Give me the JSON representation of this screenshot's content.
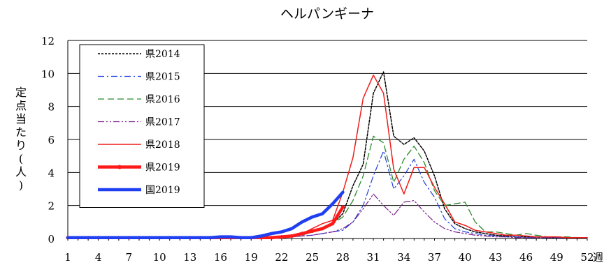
{
  "chart_data": {
    "type": "line",
    "title": "ヘルパンギーナ",
    "ylabel": "定点当たり(人)",
    "xlabel": "週",
    "xlim": [
      1,
      52
    ],
    "ylim": [
      0,
      12
    ],
    "x_ticks": [
      1,
      4,
      7,
      10,
      13,
      16,
      19,
      22,
      25,
      28,
      31,
      34,
      37,
      40,
      43,
      46,
      49,
      52
    ],
    "y_ticks": [
      0,
      2,
      4,
      6,
      8,
      10,
      12
    ],
    "grid": "horizontal",
    "legend_position": "top-left",
    "series": [
      {
        "name": "県2014",
        "color": "#000000",
        "dash": "dotted",
        "width": 1.5,
        "marker": false,
        "x": [
          1,
          2,
          3,
          4,
          5,
          6,
          7,
          8,
          9,
          10,
          11,
          12,
          13,
          14,
          15,
          16,
          17,
          18,
          19,
          20,
          21,
          22,
          23,
          24,
          25,
          26,
          27,
          28,
          29,
          30,
          31,
          32,
          33,
          34,
          35,
          36,
          37,
          38,
          39,
          40,
          41,
          42,
          43,
          44,
          45,
          46,
          47,
          48,
          49,
          50,
          51,
          52
        ],
        "values": [
          0.05,
          0.05,
          0.05,
          0.05,
          0.05,
          0.05,
          0.05,
          0.05,
          0.05,
          0.05,
          0.05,
          0.05,
          0.05,
          0.05,
          0.05,
          0.05,
          0.05,
          0.05,
          0.05,
          0.05,
          0.1,
          0.1,
          0.2,
          0.3,
          0.4,
          0.6,
          0.9,
          1.5,
          3.2,
          4.5,
          8.8,
          10.1,
          6.2,
          5.7,
          6.1,
          5.3,
          3.8,
          1.8,
          0.9,
          0.6,
          0.4,
          0.3,
          0.2,
          0.15,
          0.1,
          0.1,
          0.1,
          0.05,
          0.05,
          0.05,
          0.05,
          0.05
        ]
      },
      {
        "name": "県2015",
        "color": "#1f3fdc",
        "dash": "dashdot",
        "width": 1.2,
        "marker": false,
        "x": [
          1,
          2,
          3,
          4,
          5,
          6,
          7,
          8,
          9,
          10,
          11,
          12,
          13,
          14,
          15,
          16,
          17,
          18,
          19,
          20,
          21,
          22,
          23,
          24,
          25,
          26,
          27,
          28,
          29,
          30,
          31,
          32,
          33,
          34,
          35,
          36,
          37,
          38,
          39,
          40,
          41,
          42,
          43,
          44,
          45,
          46,
          47,
          48,
          49,
          50,
          51,
          52
        ],
        "values": [
          0.05,
          0.05,
          0.05,
          0.05,
          0.05,
          0.05,
          0.05,
          0.05,
          0.05,
          0.05,
          0.05,
          0.05,
          0.05,
          0.05,
          0.05,
          0.05,
          0.05,
          0.05,
          0.05,
          0.05,
          0.05,
          0.1,
          0.1,
          0.15,
          0.2,
          0.3,
          0.4,
          0.5,
          1.0,
          2.0,
          3.8,
          5.3,
          3.0,
          3.8,
          4.8,
          3.4,
          2.5,
          1.2,
          0.6,
          0.4,
          0.3,
          0.2,
          0.15,
          0.1,
          0.1,
          0.05,
          0.05,
          0.05,
          0.05,
          0.05,
          0.05,
          0.05
        ]
      },
      {
        "name": "県2016",
        "color": "#2b8a2b",
        "dash": "dashed",
        "width": 1.3,
        "marker": false,
        "x": [
          1,
          2,
          3,
          4,
          5,
          6,
          7,
          8,
          9,
          10,
          11,
          12,
          13,
          14,
          15,
          16,
          17,
          18,
          19,
          20,
          21,
          22,
          23,
          24,
          25,
          26,
          27,
          28,
          29,
          30,
          31,
          32,
          33,
          34,
          35,
          36,
          37,
          38,
          39,
          40,
          41,
          42,
          43,
          44,
          45,
          46,
          47,
          48,
          49,
          50,
          51,
          52
        ],
        "values": [
          0.05,
          0.05,
          0.05,
          0.05,
          0.05,
          0.05,
          0.05,
          0.05,
          0.05,
          0.05,
          0.05,
          0.05,
          0.05,
          0.05,
          0.05,
          0.05,
          0.05,
          0.05,
          0.05,
          0.05,
          0.1,
          0.1,
          0.15,
          0.2,
          0.4,
          0.6,
          0.9,
          1.3,
          2.3,
          3.8,
          6.2,
          5.8,
          3.4,
          4.8,
          5.6,
          4.6,
          2.9,
          2.0,
          2.1,
          2.2,
          1.0,
          0.4,
          0.4,
          0.3,
          0.2,
          0.3,
          0.2,
          0.1,
          0.1,
          0.1,
          0.05,
          0.05
        ]
      },
      {
        "name": "県2017",
        "color": "#7a1f8c",
        "dash": "dashdotdot",
        "width": 1.2,
        "marker": false,
        "x": [
          1,
          2,
          3,
          4,
          5,
          6,
          7,
          8,
          9,
          10,
          11,
          12,
          13,
          14,
          15,
          16,
          17,
          18,
          19,
          20,
          21,
          22,
          23,
          24,
          25,
          26,
          27,
          28,
          29,
          30,
          31,
          32,
          33,
          34,
          35,
          36,
          37,
          38,
          39,
          40,
          41,
          42,
          43,
          44,
          45,
          46,
          47,
          48,
          49,
          50,
          51,
          52
        ],
        "values": [
          0.05,
          0.05,
          0.05,
          0.05,
          0.05,
          0.05,
          0.05,
          0.05,
          0.05,
          0.05,
          0.05,
          0.05,
          0.05,
          0.05,
          0.05,
          0.05,
          0.05,
          0.05,
          0.05,
          0.05,
          0.05,
          0.1,
          0.1,
          0.15,
          0.2,
          0.3,
          0.4,
          0.6,
          1.0,
          1.8,
          2.7,
          2.0,
          1.4,
          2.2,
          2.3,
          1.6,
          1.0,
          0.6,
          0.4,
          0.3,
          0.2,
          0.15,
          0.1,
          0.1,
          0.05,
          0.05,
          0.05,
          0.05,
          0.05,
          0.05,
          0.05,
          0.05
        ]
      },
      {
        "name": "県2018",
        "color": "#ee1c1c",
        "dash": "solid",
        "width": 1.5,
        "marker": false,
        "x": [
          1,
          2,
          3,
          4,
          5,
          6,
          7,
          8,
          9,
          10,
          11,
          12,
          13,
          14,
          15,
          16,
          17,
          18,
          19,
          20,
          21,
          22,
          23,
          24,
          25,
          26,
          27,
          28,
          29,
          30,
          31,
          32,
          33,
          34,
          35,
          36,
          37,
          38,
          39,
          40,
          41,
          42,
          43,
          44,
          45,
          46,
          47,
          48,
          49,
          50,
          51,
          52
        ],
        "values": [
          0.05,
          0.05,
          0.05,
          0.05,
          0.05,
          0.05,
          0.05,
          0.05,
          0.05,
          0.05,
          0.05,
          0.05,
          0.05,
          0.05,
          0.05,
          0.05,
          0.05,
          0.05,
          0.05,
          0.05,
          0.1,
          0.1,
          0.2,
          0.3,
          0.6,
          0.9,
          1.1,
          2.8,
          4.9,
          8.5,
          9.9,
          8.8,
          4.2,
          2.7,
          4.3,
          4.3,
          3.1,
          2.1,
          1.0,
          0.8,
          0.5,
          0.4,
          0.3,
          0.2,
          0.2,
          0.15,
          0.1,
          0.1,
          0.1,
          0.05,
          0.05,
          0.05
        ]
      },
      {
        "name": "県2019",
        "color": "#ff1a1a",
        "dash": "solid",
        "width": 4.5,
        "marker": true,
        "x": [
          1,
          2,
          3,
          4,
          5,
          6,
          7,
          8,
          9,
          10,
          11,
          12,
          13,
          14,
          15,
          16,
          17,
          18,
          19,
          20,
          21,
          22,
          23,
          24,
          25,
          26,
          27,
          28
        ],
        "values": [
          0.05,
          0.05,
          0.05,
          0.05,
          0.05,
          0.05,
          0.05,
          0.05,
          0.05,
          0.05,
          0.05,
          0.05,
          0.05,
          0.05,
          0.05,
          0.05,
          0.05,
          0.05,
          0.05,
          0.05,
          0.05,
          0.1,
          0.15,
          0.3,
          0.45,
          0.6,
          0.9,
          1.9
        ]
      },
      {
        "name": "国2019",
        "color": "#1e3ff2",
        "dash": "solid",
        "width": 4.5,
        "marker": false,
        "x": [
          1,
          2,
          3,
          4,
          5,
          6,
          7,
          8,
          9,
          10,
          11,
          12,
          13,
          14,
          15,
          16,
          17,
          18,
          19,
          20,
          21,
          22,
          23,
          24,
          25,
          26,
          27,
          28
        ],
        "values": [
          0.05,
          0.05,
          0.05,
          0.05,
          0.05,
          0.05,
          0.05,
          0.05,
          0.05,
          0.05,
          0.05,
          0.05,
          0.05,
          0.05,
          0.05,
          0.1,
          0.1,
          0.05,
          0.05,
          0.15,
          0.3,
          0.4,
          0.6,
          1.0,
          1.3,
          1.5,
          2.1,
          2.8
        ]
      }
    ]
  }
}
